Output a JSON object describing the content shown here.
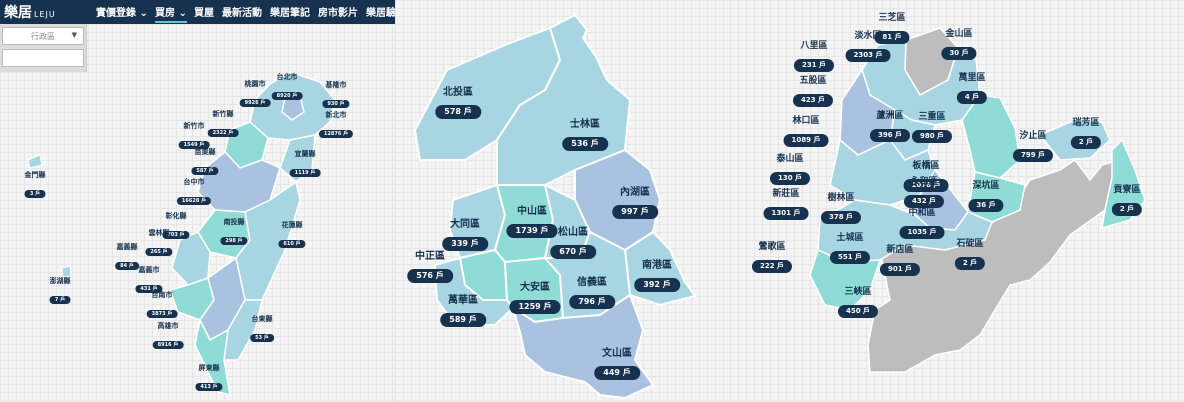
{
  "site": {
    "logo": "樂居",
    "logo_sub": "LEJU"
  },
  "nav": [
    {
      "label": "實價登錄",
      "has_dropdown": true
    },
    {
      "label": "買房",
      "has_dropdown": true,
      "active": true
    },
    {
      "label": "買屋"
    },
    {
      "label": "最新活動"
    },
    {
      "label": "樂居筆記"
    },
    {
      "label": "房市影片"
    },
    {
      "label": "樂居驗屋"
    }
  ],
  "filter": {
    "district_select": "行政區"
  },
  "unit": "戶",
  "maps": {
    "taiwan": [
      {
        "name": "基隆市",
        "count": "930"
      },
      {
        "name": "台北市",
        "count": "8920"
      },
      {
        "name": "桃園市",
        "count": "9926"
      },
      {
        "name": "新北市",
        "count": "12876"
      },
      {
        "name": "新竹縣",
        "count": "2322"
      },
      {
        "name": "新竹市",
        "count": "1549"
      },
      {
        "name": "宜蘭縣",
        "count": "1119"
      },
      {
        "name": "苗栗縣",
        "count": "587"
      },
      {
        "name": "台中市",
        "count": "16628"
      },
      {
        "name": "金門縣",
        "count": "3"
      },
      {
        "name": "彰化縣",
        "count": "703"
      },
      {
        "name": "南投縣",
        "count": "298"
      },
      {
        "name": "花蓮縣",
        "count": "610"
      },
      {
        "name": "雲林縣",
        "count": "265"
      },
      {
        "name": "嘉義縣",
        "count": "84"
      },
      {
        "name": "嘉義市",
        "count": "431"
      },
      {
        "name": "澎湖縣",
        "count": "7"
      },
      {
        "name": "台南市",
        "count": "3873"
      },
      {
        "name": "台東縣",
        "count": "53"
      },
      {
        "name": "高雄市",
        "count": "8916"
      },
      {
        "name": "屏東縣",
        "count": "413"
      }
    ],
    "taipei": [
      {
        "name": "北投區",
        "count": "578"
      },
      {
        "name": "士林區",
        "count": "536"
      },
      {
        "name": "內湖區",
        "count": "997"
      },
      {
        "name": "大同區",
        "count": "339"
      },
      {
        "name": "中山區",
        "count": "1739"
      },
      {
        "name": "松山區",
        "count": "670"
      },
      {
        "name": "中正區",
        "count": "576"
      },
      {
        "name": "南港區",
        "count": "392"
      },
      {
        "name": "大安區",
        "count": "1259"
      },
      {
        "name": "信義區",
        "count": "796"
      },
      {
        "name": "萬華區",
        "count": "589"
      },
      {
        "name": "文山區",
        "count": "449"
      }
    ],
    "new_taipei": [
      {
        "name": "三芝區",
        "count": "81"
      },
      {
        "name": "八里區",
        "count": "231"
      },
      {
        "name": "淡水區",
        "count": "2303"
      },
      {
        "name": "金山區",
        "count": "30"
      },
      {
        "name": "萬里區",
        "count": "4"
      },
      {
        "name": "五股區",
        "count": "423"
      },
      {
        "name": "蘆洲區",
        "count": "396"
      },
      {
        "name": "三重區",
        "count": "980"
      },
      {
        "name": "林口區",
        "count": "1089"
      },
      {
        "name": "汐止區",
        "count": "799"
      },
      {
        "name": "瑞芳區",
        "count": "2"
      },
      {
        "name": "板橋區",
        "count": "1078"
      },
      {
        "name": "泰山區",
        "count": "130"
      },
      {
        "name": "永和區",
        "count": "432"
      },
      {
        "name": "新莊區",
        "count": "1301"
      },
      {
        "name": "樹林區",
        "count": "378"
      },
      {
        "name": "深坑區",
        "count": "36"
      },
      {
        "name": "中和區",
        "count": "1035"
      },
      {
        "name": "貢寮區",
        "count": "2"
      },
      {
        "name": "土城區",
        "count": "551"
      },
      {
        "name": "鶯歌區",
        "count": "222"
      },
      {
        "name": "新店區",
        "count": "901"
      },
      {
        "name": "石碇區",
        "count": "2"
      },
      {
        "name": "三峽區",
        "count": "450"
      }
    ]
  },
  "colors": {
    "navbar": "#16324f",
    "badge": "#16324f",
    "region_light": "#a8d5e2",
    "region_teal": "#8fdcd6",
    "region_blue": "#a9c2e0",
    "region_gray": "#bdbdbd"
  }
}
